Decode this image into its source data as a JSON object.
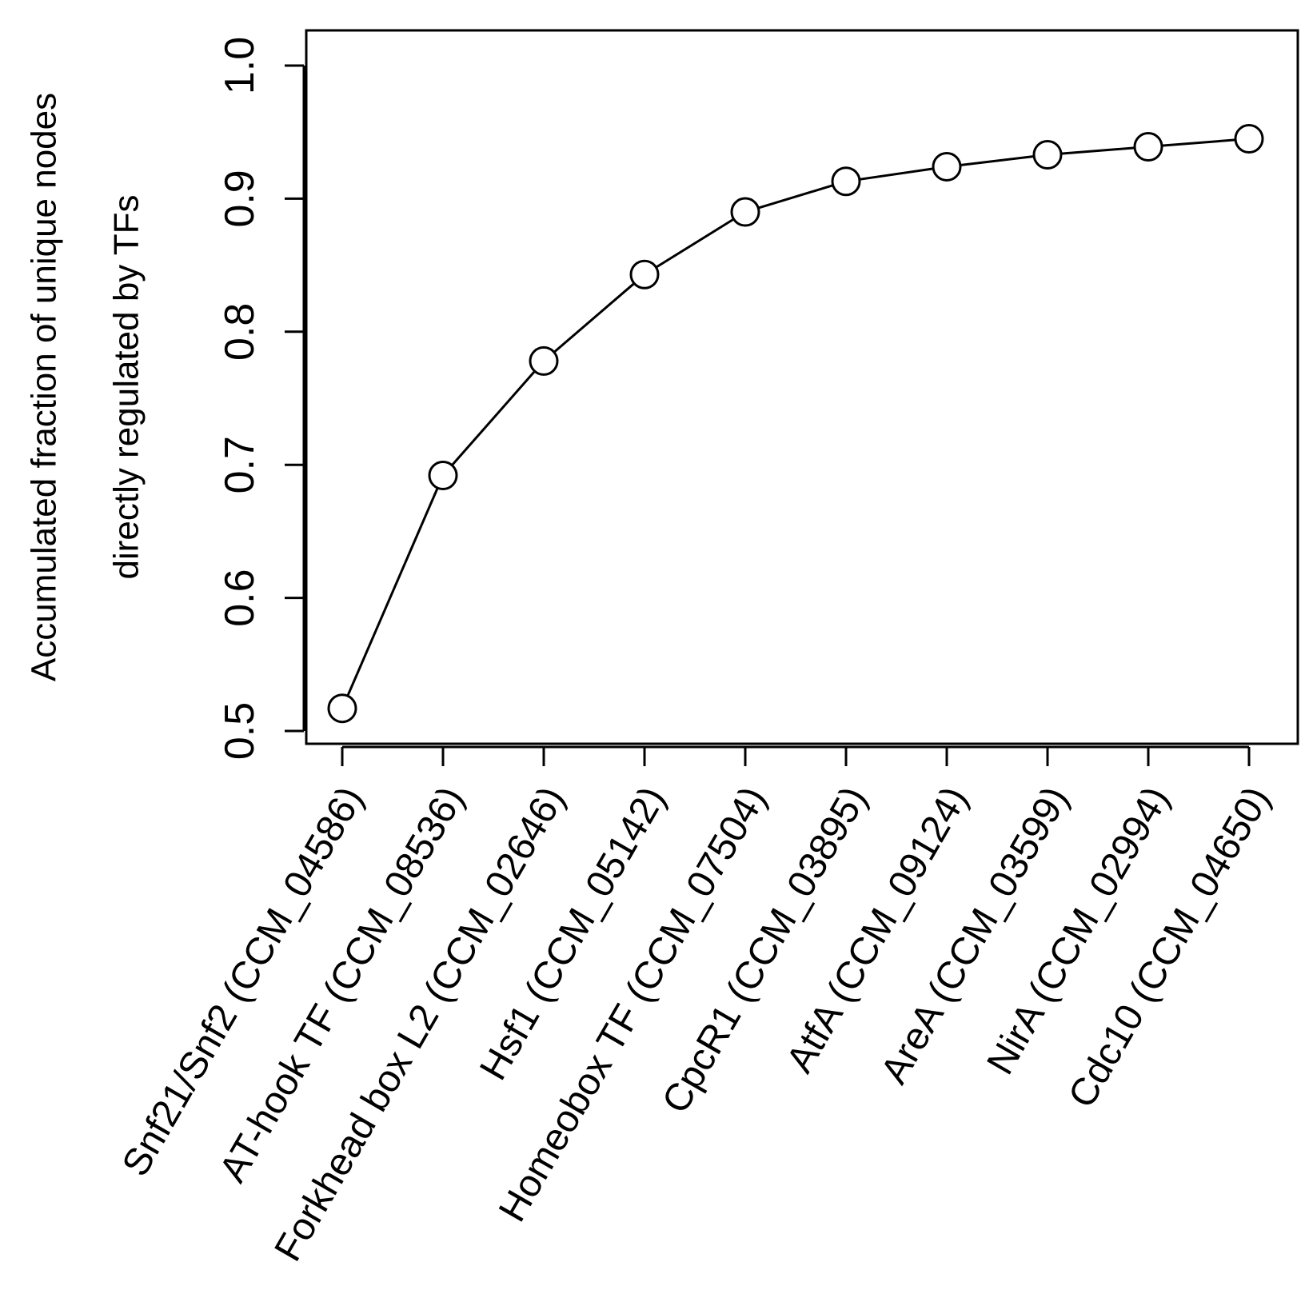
{
  "chart_data": {
    "type": "line",
    "title": "",
    "xlabel": "",
    "ylabel_lines": [
      "Accumulated fraction of unique nodes",
      "directly regulated by TFs"
    ],
    "categories": [
      "Snf21/Snf2 (CCM_04586)",
      "AT-hook TF (CCM_08536)",
      "Forkhead box L2 (CCM_02646)",
      "Hsf1 (CCM_05142)",
      "Homeobox TF (CCM_07504)",
      "CpcR1 (CCM_03895)",
      "AtfA (CCM_09124)",
      "AreA (CCM_03599)",
      "NirA (CCM_02994)",
      "Cdc10 (CCM_04650)"
    ],
    "series": [
      {
        "values": [
          0.517,
          0.692,
          0.778,
          0.843,
          0.89,
          0.913,
          0.924,
          0.933,
          0.939,
          0.945
        ]
      }
    ],
    "y_ticks": [
      "0.5",
      "0.6",
      "0.7",
      "0.8",
      "0.9",
      "1.0"
    ],
    "ylim": [
      0.5,
      1.0
    ],
    "marker": "open-circle",
    "grid": false,
    "legend": "none",
    "line_color": "#000000"
  }
}
